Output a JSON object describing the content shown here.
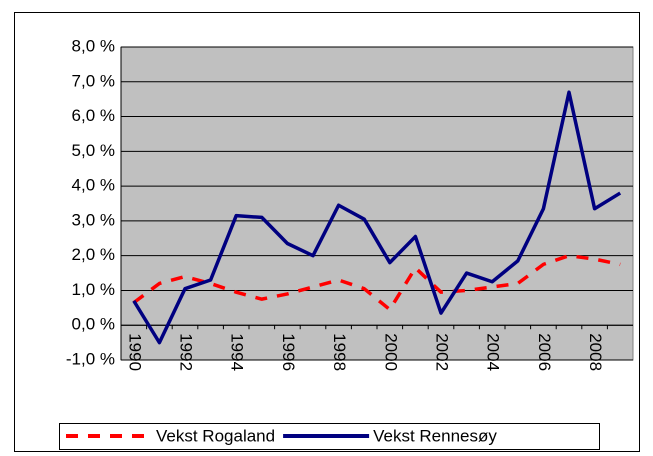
{
  "chart_data": {
    "type": "line",
    "categories": [
      "1990",
      null,
      "1992",
      null,
      "1994",
      null,
      "1996",
      null,
      "1998",
      null,
      "2000",
      null,
      "2002",
      null,
      "2004",
      null,
      "2006",
      null,
      "2008",
      null
    ],
    "series": [
      {
        "name": "Vekst Rogaland",
        "color": "#ff0000",
        "dashed": true,
        "values": [
          0.65,
          1.2,
          1.4,
          1.2,
          0.95,
          0.75,
          0.9,
          1.1,
          1.3,
          1.05,
          0.45,
          1.65,
          0.95,
          1.0,
          1.1,
          1.2,
          1.75,
          2.0,
          1.9,
          1.75
        ]
      },
      {
        "name": "Vekst Rennesøy",
        "color": "#000080",
        "dashed": false,
        "values": [
          0.7,
          -0.5,
          1.05,
          1.3,
          3.15,
          3.1,
          2.35,
          2.0,
          3.45,
          3.05,
          1.8,
          2.55,
          0.35,
          1.5,
          1.25,
          1.85,
          3.35,
          6.7,
          3.35,
          3.8
        ]
      }
    ],
    "ylim": [
      -1,
      8
    ],
    "yticks": [
      {
        "value": -1,
        "label": "-1,0 %"
      },
      {
        "value": 0,
        "label": "0,0 %"
      },
      {
        "value": 1,
        "label": "1,0 %"
      },
      {
        "value": 2,
        "label": "2,0 %"
      },
      {
        "value": 3,
        "label": "3,0 %"
      },
      {
        "value": 4,
        "label": "4,0 %"
      },
      {
        "value": 5,
        "label": "5,0 %"
      },
      {
        "value": 6,
        "label": "6,0 %"
      },
      {
        "value": 7,
        "label": "7,0 %"
      },
      {
        "value": 8,
        "label": "8,0 %"
      }
    ],
    "grid": true,
    "plot_background": "#c0c0c0",
    "legend": "bottom"
  }
}
